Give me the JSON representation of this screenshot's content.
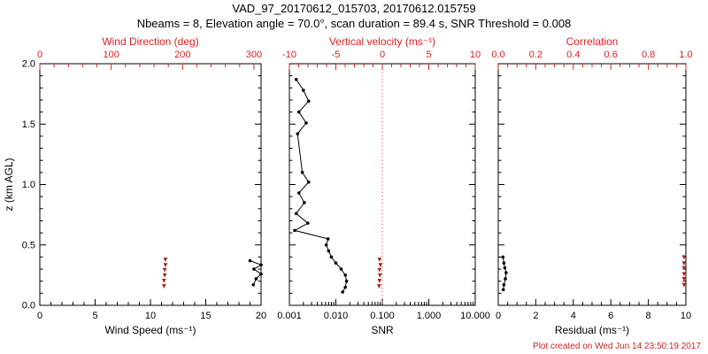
{
  "header": {
    "title": "VAD_97_20170612_015703, 20170612.015759",
    "subtitle": "Nbeams = 8, Elevation angle = 70.0°, scan duration = 89.4 s, SNR Threshold = 0.008"
  },
  "footer": {
    "created": "Plot created on Wed Jun 14 23:50:19 2017"
  },
  "colors": {
    "frame": "#000000",
    "red_text": "#dd2222",
    "red_marker": "#aa2222",
    "red_line": "#cc4444",
    "background": "#ffffff"
  },
  "chart_data": {
    "type": "scatter",
    "title": "VAD_97_20170612_015703, 20170612.015759",
    "ylabel": "z (km AGL)",
    "ylim": [
      0.0,
      2.0
    ],
    "yticks": {
      "values": [
        0.0,
        0.5,
        1.0,
        1.5,
        2.0
      ],
      "labels": [
        "0.0",
        "0.5",
        "1.0",
        "1.5",
        "2.0"
      ],
      "minor_step": 0.1
    },
    "panels": [
      {
        "name": "wind",
        "bottom_axis": {
          "label": "Wind Speed (ms⁻¹)",
          "scale": "linear",
          "range": [
            0,
            20
          ],
          "tick_values": [
            0,
            5,
            10,
            15,
            20
          ],
          "tick_labels": [
            "0",
            "5",
            "10",
            "15",
            "20"
          ],
          "minor_step": 1
        },
        "top_axis": {
          "label": "Wind Direction (deg)",
          "scale": "linear",
          "range": [
            0,
            310
          ],
          "tick_values": [
            0,
            100,
            200,
            300
          ],
          "tick_labels": [
            "0",
            "100",
            "200",
            "300"
          ],
          "minor_step": 20
        },
        "series": [
          {
            "name": "wind-speed",
            "axis": "bottom",
            "color": "black",
            "line": true,
            "marker": "dot",
            "points": [
              {
                "x": 19.0,
                "z": 0.37
              },
              {
                "x": 20.0,
                "z": 0.335
              },
              {
                "x": 19.35,
                "z": 0.3
              },
              {
                "x": 20.0,
                "z": 0.26
              },
              {
                "x": 19.55,
                "z": 0.22
              },
              {
                "x": 19.3,
                "z": 0.17
              }
            ]
          },
          {
            "name": "wind-direction",
            "axis": "top",
            "color": "red",
            "line": false,
            "marker": "arrow",
            "points": [
              {
                "x": 176,
                "z": 0.38
              },
              {
                "x": 176,
                "z": 0.335
              },
              {
                "x": 175,
                "z": 0.295
              },
              {
                "x": 175,
                "z": 0.25
              },
              {
                "x": 174,
                "z": 0.205
              },
              {
                "x": 174,
                "z": 0.16
              }
            ]
          }
        ]
      },
      {
        "name": "snr",
        "bottom_axis": {
          "label": "SNR",
          "scale": "log",
          "range": [
            0.001,
            10
          ],
          "tick_values": [
            0.001,
            0.01,
            0.1,
            1,
            10
          ],
          "tick_labels": [
            "0.001",
            "0.010",
            "0.100",
            "1.000",
            "10.000"
          ]
        },
        "top_axis": {
          "label": "Vertical velocity (ms⁻¹)",
          "scale": "linear",
          "range": [
            -10,
            10
          ],
          "tick_values": [
            -10,
            -5,
            0,
            5,
            10
          ],
          "tick_labels": [
            "-10",
            "-5",
            "0",
            "5",
            "10"
          ],
          "minor_step": 1
        },
        "vline": {
          "axis": "top",
          "value": 0,
          "style": "dotted",
          "color": "red"
        },
        "series": [
          {
            "name": "snr-profile",
            "axis": "bottom",
            "color": "black",
            "line": true,
            "marker": "dot",
            "points": [
              {
                "x": 0.0014,
                "z": 1.87
              },
              {
                "x": 0.002,
                "z": 1.78
              },
              {
                "x": 0.0026,
                "z": 1.69
              },
              {
                "x": 0.0016,
                "z": 1.6
              },
              {
                "x": 0.0023,
                "z": 1.51
              },
              {
                "x": 0.0015,
                "z": 1.42
              },
              {
                "x": 0.0019,
                "z": 1.1
              },
              {
                "x": 0.0026,
                "z": 1.02
              },
              {
                "x": 0.0016,
                "z": 0.93
              },
              {
                "x": 0.0021,
                "z": 0.85
              },
              {
                "x": 0.0014,
                "z": 0.76
              },
              {
                "x": 0.0025,
                "z": 0.68
              },
              {
                "x": 0.0013,
                "z": 0.62
              },
              {
                "x": 0.0068,
                "z": 0.55
              },
              {
                "x": 0.0062,
                "z": 0.5
              },
              {
                "x": 0.007,
                "z": 0.45
              },
              {
                "x": 0.008,
                "z": 0.4
              },
              {
                "x": 0.01,
                "z": 0.35
              },
              {
                "x": 0.013,
                "z": 0.3
              },
              {
                "x": 0.016,
                "z": 0.25
              },
              {
                "x": 0.017,
                "z": 0.2
              },
              {
                "x": 0.016,
                "z": 0.15
              },
              {
                "x": 0.014,
                "z": 0.11
              }
            ]
          },
          {
            "name": "vertical-velocity",
            "axis": "top",
            "color": "red",
            "line": false,
            "marker": "arrow",
            "points": [
              {
                "x": -0.3,
                "z": 0.38
              },
              {
                "x": -0.2,
                "z": 0.335
              },
              {
                "x": -0.3,
                "z": 0.295
              },
              {
                "x": -0.25,
                "z": 0.25
              },
              {
                "x": -0.3,
                "z": 0.205
              },
              {
                "x": -0.35,
                "z": 0.16
              }
            ]
          }
        ]
      },
      {
        "name": "residual",
        "bottom_axis": {
          "label": "Residual (ms⁻¹)",
          "scale": "linear",
          "range": [
            0,
            10
          ],
          "tick_values": [
            0,
            2,
            4,
            6,
            8,
            10
          ],
          "tick_labels": [
            "0",
            "2",
            "4",
            "6",
            "8",
            "10"
          ],
          "minor_step": 0.5
        },
        "top_axis": {
          "label": "Correlation",
          "scale": "linear",
          "range": [
            0,
            1
          ],
          "tick_values": [
            0,
            0.2,
            0.4,
            0.6,
            0.8,
            1
          ],
          "tick_labels": [
            "0.0",
            "0.2",
            "0.4",
            "0.6",
            "0.8",
            "1.0"
          ],
          "minor_step": 0.05
        },
        "series": [
          {
            "name": "residual",
            "axis": "bottom",
            "color": "black",
            "line": true,
            "marker": "dot",
            "points": [
              {
                "x": 0.25,
                "z": 0.4
              },
              {
                "x": 0.3,
                "z": 0.35
              },
              {
                "x": 0.35,
                "z": 0.31
              },
              {
                "x": 0.42,
                "z": 0.27
              },
              {
                "x": 0.38,
                "z": 0.22
              },
              {
                "x": 0.3,
                "z": 0.17
              },
              {
                "x": 0.27,
                "z": 0.13
              }
            ]
          },
          {
            "name": "correlation",
            "axis": "top",
            "color": "red",
            "line": false,
            "marker": "arrow",
            "points": [
              {
                "x": 0.99,
                "z": 0.4
              },
              {
                "x": 0.99,
                "z": 0.35
              },
              {
                "x": 0.99,
                "z": 0.31
              },
              {
                "x": 0.99,
                "z": 0.26
              },
              {
                "x": 0.99,
                "z": 0.22
              },
              {
                "x": 0.99,
                "z": 0.17
              }
            ]
          }
        ]
      }
    ]
  }
}
